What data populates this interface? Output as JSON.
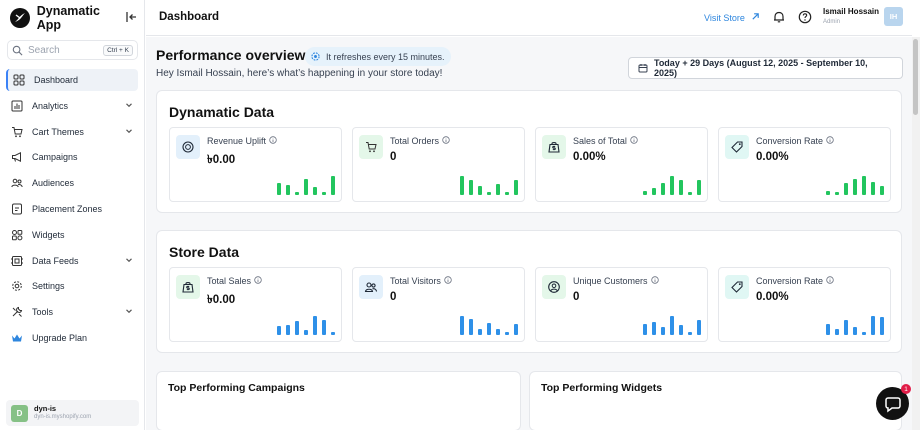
{
  "sidebar": {
    "app_name": "Dynamatic App",
    "search_placeholder": "Search",
    "search_shortcut": "Ctrl + K",
    "items": [
      {
        "label": "Dashboard",
        "icon": "grid-icon",
        "active": true,
        "expandable": false
      },
      {
        "label": "Analytics",
        "icon": "bar-chart-icon",
        "active": false,
        "expandable": true
      },
      {
        "label": "Cart Themes",
        "icon": "cart-icon",
        "active": false,
        "expandable": true
      },
      {
        "label": "Campaigns",
        "icon": "megaphone-icon",
        "active": false,
        "expandable": false
      },
      {
        "label": "Audiences",
        "icon": "users-icon",
        "active": false,
        "expandable": false
      },
      {
        "label": "Placement Zones",
        "icon": "placement-icon",
        "active": false,
        "expandable": false
      },
      {
        "label": "Widgets",
        "icon": "widgets-icon",
        "active": false,
        "expandable": false
      },
      {
        "label": "Data Feeds",
        "icon": "data-feed-icon",
        "active": false,
        "expandable": true
      },
      {
        "label": "Settings",
        "icon": "gear-icon",
        "active": false,
        "expandable": false
      },
      {
        "label": "Tools",
        "icon": "tools-icon",
        "active": false,
        "expandable": true
      },
      {
        "label": "Upgrade Plan",
        "icon": "crown-icon",
        "active": false,
        "expandable": false
      }
    ],
    "store": {
      "initial": "D",
      "name": "dyn-is",
      "url": "dyn-is.myshopify.com"
    }
  },
  "header": {
    "title": "Dashboard",
    "visit_store": "Visit Store",
    "user_name": "Ismail Hossain",
    "user_role": "Admin",
    "user_initials": "IH"
  },
  "overview": {
    "title": "Performance overview",
    "refresh_note": "It refreshes every 15 minutes.",
    "greeting": "Hey Ismail Hossain, here’s what’s happening in your store today!",
    "date_range": "Today + 29 Days (August 12, 2025 - September 10, 2025)"
  },
  "panels": [
    {
      "title": "Dynamatic Data",
      "bar_color": "#22c55e",
      "cards": [
        {
          "label": "Revenue Uplift",
          "value": "৳0.00",
          "icon": "coin-icon",
          "icon_bg": "#e3f0fb",
          "bars": [
            0.6,
            0.5,
            0.15,
            0.8,
            0.4,
            0.15,
            0.95
          ]
        },
        {
          "label": "Total Orders",
          "value": "0",
          "icon": "cart-icon",
          "icon_bg": "#e4f7e9",
          "bars": [
            0.95,
            0.75,
            0.45,
            0.15,
            0.55,
            0.15,
            0.75
          ]
        },
        {
          "label": "Sales of Total",
          "value": "0.00%",
          "icon": "bag-dollar-icon",
          "icon_bg": "#e4f7e9",
          "bars": [
            0.2,
            0.35,
            0.6,
            0.95,
            0.75,
            0.15,
            0.75
          ]
        },
        {
          "label": "Conversion Rate",
          "value": "0.00%",
          "icon": "tag-icon",
          "icon_bg": "#e0f7f4",
          "bars": [
            0.2,
            0.15,
            0.6,
            0.8,
            0.95,
            0.65,
            0.45
          ]
        }
      ]
    },
    {
      "title": "Store Data",
      "bar_color": "#2e90e8",
      "cards": [
        {
          "label": "Total Sales",
          "value": "৳0.00",
          "icon": "bag-dollar-icon",
          "icon_bg": "#e4f7e9",
          "bars": [
            0.45,
            0.5,
            0.7,
            0.25,
            0.95,
            0.75,
            0.15
          ]
        },
        {
          "label": "Total Visitors",
          "value": "0",
          "icon": "visitors-icon",
          "icon_bg": "#e3f0fb",
          "bars": [
            0.95,
            0.8,
            0.3,
            0.6,
            0.3,
            0.15,
            0.55
          ]
        },
        {
          "label": "Unique Customers",
          "value": "0",
          "icon": "customer-icon",
          "icon_bg": "#e4f7e9",
          "bars": [
            0.55,
            0.65,
            0.4,
            0.95,
            0.5,
            0.15,
            0.75
          ]
        },
        {
          "label": "Conversion Rate",
          "value": "0.00%",
          "icon": "tag-icon",
          "icon_bg": "#e0f7f4",
          "bars": [
            0.55,
            0.3,
            0.75,
            0.4,
            0.15,
            0.95,
            0.9
          ]
        }
      ]
    }
  ],
  "bottom": {
    "campaigns_title": "Top Performing Campaigns",
    "widgets_title": "Top Performing Widgets"
  },
  "chat": {
    "badge": "1"
  }
}
